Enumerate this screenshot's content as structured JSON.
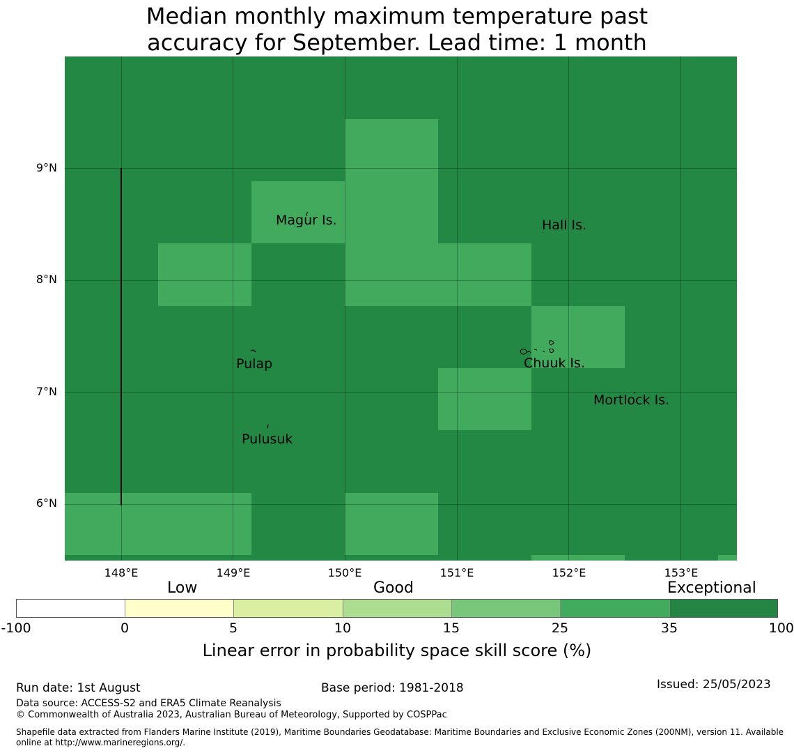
{
  "title": {
    "line1": "Median monthly maximum temperature past",
    "line2": "accuracy for September. Lead time: 1 month"
  },
  "map": {
    "lat_labels": [
      "9°N",
      "8°N",
      "7°N",
      "6°N"
    ],
    "lon_labels": [
      "148°E",
      "149°E",
      "150°E",
      "151°E",
      "152°E",
      "153°E"
    ],
    "places": {
      "magur": "Magur Is.",
      "hall": "Hall Is.",
      "pulap": "Pulap",
      "chuuk": "Chuuk Is.",
      "mortlock": "Mortlock Is.",
      "pulusuk": "Pulusuk"
    },
    "colors": {
      "exceptional_dark": "#238843",
      "good_25_35": "#41aa5c"
    }
  },
  "legend": {
    "categories": {
      "low": "Low",
      "good": "Good",
      "exceptional": "Exceptional"
    },
    "ticks": [
      "-100",
      "0",
      "5",
      "10",
      "15",
      "25",
      "35",
      "100"
    ],
    "colors": [
      "#ffffff",
      "#ffffcc",
      "#d9f0a3",
      "#addd8e",
      "#78c679",
      "#41ab5d",
      "#238443"
    ],
    "title": "Linear error in probability space skill score (%)"
  },
  "footer": {
    "run_date": "Run date: 1st August",
    "base_period": "Base period: 1981-2018",
    "issued": "Issued: 25/05/2023",
    "data_source": "Data source: ACCESS-S2 and ERA5 Climate Reanalysis",
    "copyright": "© Commonwealth of Australia 2023, Australian Bureau of Meteorology, Supported by COSPPac",
    "shapefile": "Shapefile data extracted from Flanders Marine Institute (2019), Maritime Boundaries Geodatabase: Maritime Boundaries and Exclusive Economic Zones (200NM), version 11. Available online at http://www.marineregions.org/."
  }
}
